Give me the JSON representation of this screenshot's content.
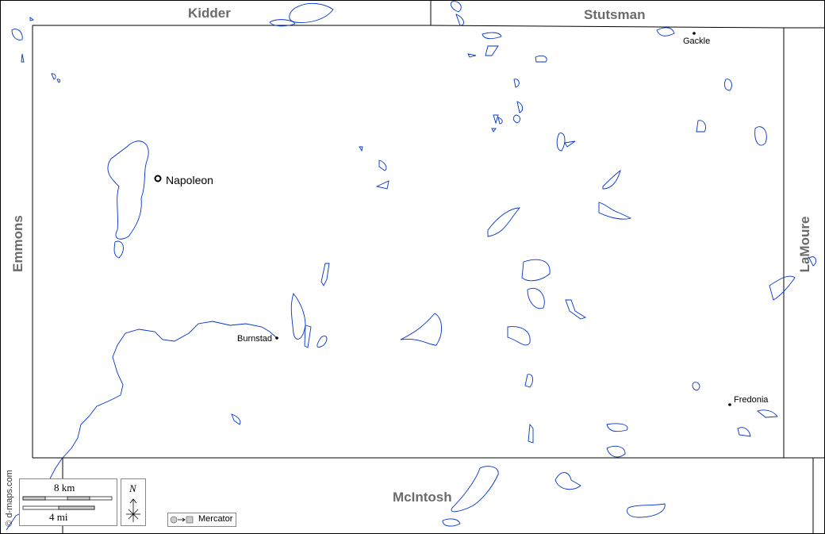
{
  "counties": {
    "north_west": "Kidder",
    "north_east": "Stutsman",
    "west": "Emmons",
    "east": "LaMoure",
    "south": "McIntosh"
  },
  "towns": {
    "seat": "Napoleon",
    "t1": "Burnstad",
    "t2": "Gackle",
    "t3": "Fredonia"
  },
  "credit": "© d-maps.com",
  "scale": {
    "km": "8 km",
    "mi": "4 mi"
  },
  "north": "N",
  "projection": "Mercator",
  "colors": {
    "water": "#0033cc",
    "border": "#000000",
    "label": "#6b6b6b"
  }
}
